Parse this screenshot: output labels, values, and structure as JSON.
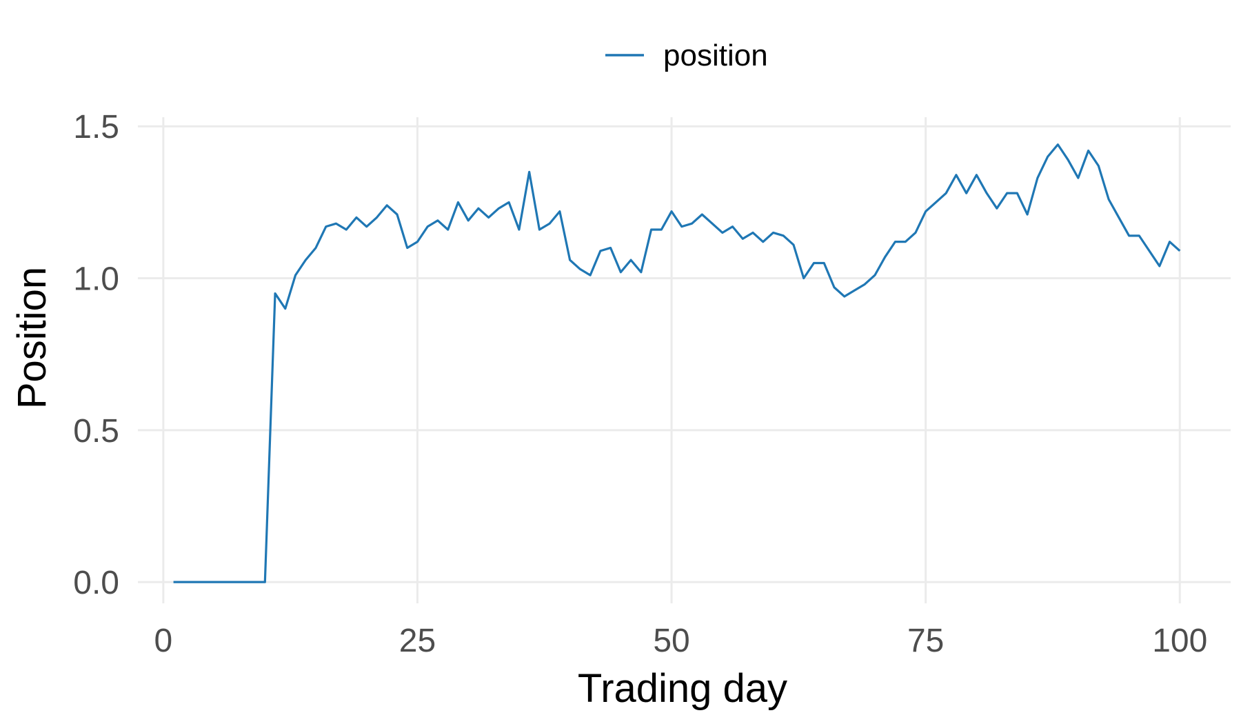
{
  "chart_data": {
    "type": "line",
    "xlabel": "Trading day",
    "ylabel": "Position",
    "xlim": [
      -2.5,
      105
    ],
    "ylim": [
      -0.07,
      1.53
    ],
    "x_ticks": [
      0,
      25,
      50,
      75,
      100
    ],
    "x_tick_labels": [
      "0",
      "25",
      "50",
      "75",
      "100"
    ],
    "y_ticks": [
      0.0,
      0.5,
      1.0,
      1.5
    ],
    "y_tick_labels": [
      "0.0",
      "0.5",
      "1.0",
      "1.5"
    ],
    "grid": true,
    "legend": {
      "position": "top",
      "labels": [
        "position"
      ]
    },
    "colors": {
      "position": "#1f77b4",
      "grid": "#ebebeb",
      "tick_text": "#4d4d4d"
    },
    "series": [
      {
        "name": "position",
        "x": [
          1,
          2,
          3,
          4,
          5,
          6,
          7,
          8,
          9,
          10,
          11,
          12,
          13,
          14,
          15,
          16,
          17,
          18,
          19,
          20,
          21,
          22,
          23,
          24,
          25,
          26,
          27,
          28,
          29,
          30,
          31,
          32,
          33,
          34,
          35,
          36,
          37,
          38,
          39,
          40,
          41,
          42,
          43,
          44,
          45,
          46,
          47,
          48,
          49,
          50,
          51,
          52,
          53,
          54,
          55,
          56,
          57,
          58,
          59,
          60,
          61,
          62,
          63,
          64,
          65,
          66,
          67,
          68,
          69,
          70,
          71,
          72,
          73,
          74,
          75,
          76,
          77,
          78,
          79,
          80,
          81,
          82,
          83,
          84,
          85,
          86,
          87,
          88,
          89,
          90,
          91,
          92,
          93,
          94,
          95,
          96,
          97,
          98,
          99,
          100
        ],
        "y": [
          0,
          0,
          0,
          0,
          0,
          0,
          0,
          0,
          0,
          0,
          0.95,
          0.9,
          1.01,
          1.06,
          1.1,
          1.17,
          1.18,
          1.16,
          1.2,
          1.17,
          1.2,
          1.24,
          1.21,
          1.1,
          1.12,
          1.17,
          1.19,
          1.16,
          1.25,
          1.19,
          1.23,
          1.2,
          1.23,
          1.25,
          1.16,
          1.35,
          1.16,
          1.18,
          1.22,
          1.06,
          1.03,
          1.01,
          1.09,
          1.1,
          1.02,
          1.06,
          1.02,
          1.16,
          1.16,
          1.22,
          1.17,
          1.18,
          1.21,
          1.18,
          1.15,
          1.17,
          1.13,
          1.15,
          1.12,
          1.15,
          1.14,
          1.11,
          1.0,
          1.05,
          1.05,
          0.97,
          0.94,
          0.96,
          0.98,
          1.01,
          1.07,
          1.12,
          1.12,
          1.15,
          1.22,
          1.25,
          1.28,
          1.34,
          1.28,
          1.34,
          1.28,
          1.23,
          1.28,
          1.28,
          1.21,
          1.33,
          1.4,
          1.44,
          1.39,
          1.33,
          1.42,
          1.37,
          1.26,
          1.2,
          1.14,
          1.14,
          1.09,
          1.04,
          1.12,
          1.09
        ]
      }
    ]
  }
}
